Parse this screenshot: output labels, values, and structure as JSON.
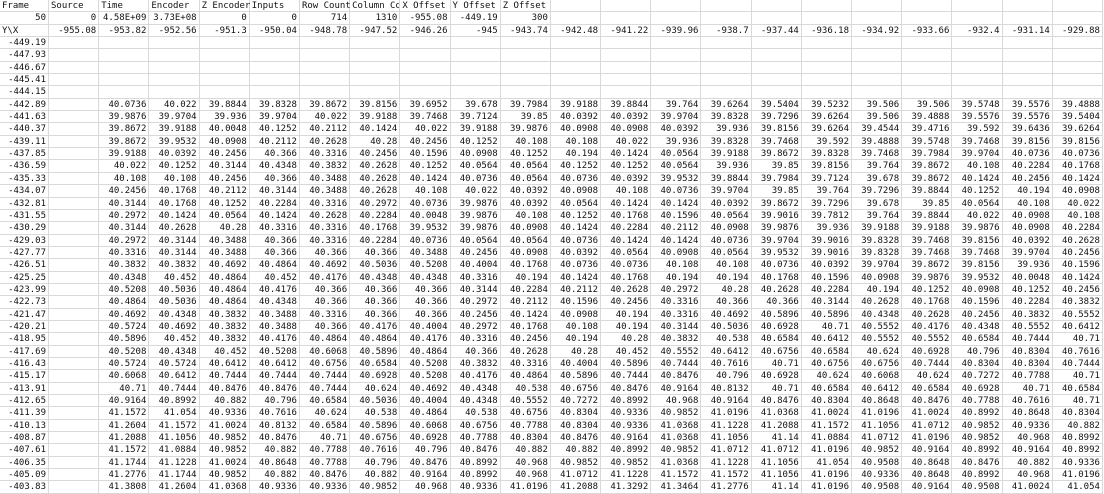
{
  "header": {
    "labels": [
      "Frame",
      "Source",
      "Time",
      "Encoder",
      "Z Encoder",
      "Inputs",
      "Row Count",
      "Column Count",
      "X Offset",
      "Y Offset",
      "Z Offset"
    ],
    "values": [
      "50",
      "0",
      "4.58E+09",
      "3.73E+08",
      "0",
      "0",
      "714",
      "1310",
      "-955.08",
      "-449.19",
      "300"
    ]
  },
  "grid": {
    "corner": "Y\\X",
    "x": [
      "-955.08",
      "-953.82",
      "-952.56",
      "-951.3",
      "-950.04",
      "-948.78",
      "-947.52",
      "-946.26",
      "-945",
      "-943.74",
      "-942.48",
      "-941.22",
      "-939.96",
      "-938.7",
      "-937.44",
      "-936.18",
      "-934.92",
      "-933.66",
      "-932.4",
      "-931.14",
      "-929.88"
    ],
    "rows": [
      {
        "y": "-449.19",
        "values": []
      },
      {
        "y": "-447.93",
        "values": []
      },
      {
        "y": "-446.67",
        "values": []
      },
      {
        "y": "-445.41",
        "values": []
      },
      {
        "y": "-444.15",
        "values": []
      },
      {
        "y": "-442.89",
        "values": [
          40.0736,
          40.022,
          39.8844,
          39.8328,
          39.8672,
          39.8156,
          39.6952,
          39.678,
          39.7984,
          39.9188,
          39.8844,
          39.764,
          39.6264,
          39.5404,
          39.5232,
          39.506,
          39.506,
          39.5748,
          39.5576,
          39.4888
        ]
      },
      {
        "y": "-441.63",
        "values": [
          39.9876,
          39.9704,
          39.936,
          39.9704,
          40.022,
          39.9188,
          39.7468,
          39.7124,
          39.85,
          40.0392,
          40.0392,
          39.9704,
          39.8328,
          39.7296,
          39.6264,
          39.506,
          39.4888,
          39.5576,
          39.5576,
          39.5404
        ]
      },
      {
        "y": "-440.37",
        "values": [
          39.8672,
          39.9188,
          40.0048,
          40.1252,
          40.2112,
          40.1424,
          40.022,
          39.9188,
          39.9876,
          40.0908,
          40.0908,
          40.0392,
          39.936,
          39.8156,
          39.6264,
          39.4544,
          39.4716,
          39.592,
          39.6436,
          39.6264
        ]
      },
      {
        "y": "-439.11",
        "values": [
          39.8672,
          39.9532,
          40.0908,
          40.2112,
          40.2628,
          40.28,
          40.2456,
          40.1252,
          40.108,
          40.108,
          40.022,
          39.936,
          39.8328,
          39.7468,
          39.592,
          39.4888,
          39.5748,
          39.7468,
          39.8156,
          39.8156
        ]
      },
      {
        "y": "-437.85",
        "values": [
          39.9188,
          40.0392,
          40.2456,
          40.366,
          40.3316,
          40.2456,
          40.1596,
          40.0908,
          40.1252,
          40.194,
          40.1424,
          40.0564,
          39.9188,
          39.8672,
          39.8328,
          39.7468,
          39.7984,
          39.9704,
          40.0736,
          40.0736
        ]
      },
      {
        "y": "-436.59",
        "values": [
          40.022,
          40.1252,
          40.3144,
          40.4348,
          40.3832,
          40.2628,
          40.1252,
          40.0564,
          40.0564,
          40.1252,
          40.1252,
          40.0564,
          39.936,
          39.85,
          39.8156,
          39.764,
          39.8672,
          40.108,
          40.2284,
          40.1768
        ]
      },
      {
        "y": "-435.33",
        "values": [
          40.108,
          40.108,
          40.2456,
          40.366,
          40.3488,
          40.2628,
          40.1424,
          40.0736,
          40.0564,
          40.0736,
          40.0392,
          39.9532,
          39.8844,
          39.7984,
          39.7124,
          39.678,
          39.8672,
          40.1424,
          40.2456,
          40.1424
        ]
      },
      {
        "y": "-434.07",
        "values": [
          40.2456,
          40.1768,
          40.2112,
          40.3144,
          40.3488,
          40.2628,
          40.108,
          40.022,
          40.0392,
          40.0908,
          40.108,
          40.0736,
          39.9704,
          39.85,
          39.764,
          39.7296,
          39.8844,
          40.1252,
          40.194,
          40.0908
        ]
      },
      {
        "y": "-432.81",
        "values": [
          40.3144,
          40.1768,
          40.1252,
          40.2284,
          40.3316,
          40.2972,
          40.0736,
          39.9876,
          40.0392,
          40.0564,
          40.1424,
          40.1424,
          40.0392,
          39.8672,
          39.7296,
          39.678,
          39.85,
          40.0564,
          40.108,
          40.022
        ]
      },
      {
        "y": "-431.55",
        "values": [
          40.2972,
          40.1424,
          40.0564,
          40.1424,
          40.2628,
          40.2284,
          40.0048,
          39.9876,
          40.108,
          40.1252,
          40.1768,
          40.1596,
          40.0564,
          39.9016,
          39.7812,
          39.764,
          39.8844,
          40.022,
          40.0908,
          40.108
        ]
      },
      {
        "y": "-430.29",
        "values": [
          40.3144,
          40.2628,
          40.28,
          40.3316,
          40.3316,
          40.1768,
          39.9532,
          39.9876,
          40.0908,
          40.1424,
          40.2284,
          40.2112,
          40.0908,
          39.9876,
          39.936,
          39.9188,
          39.9188,
          39.9876,
          40.0908,
          40.2284
        ]
      },
      {
        "y": "-429.03",
        "values": [
          40.2972,
          40.3144,
          40.3488,
          40.366,
          40.3316,
          40.2284,
          40.0736,
          40.0564,
          40.0564,
          40.0736,
          40.1424,
          40.1424,
          40.0736,
          39.9704,
          39.9016,
          39.8328,
          39.7468,
          39.8156,
          40.0392,
          40.2628
        ]
      },
      {
        "y": "-427.77",
        "values": [
          40.3316,
          40.3144,
          40.3488,
          40.366,
          40.366,
          40.366,
          40.3488,
          40.2456,
          40.0908,
          40.0392,
          40.0564,
          40.0908,
          40.0564,
          39.9532,
          39.9016,
          39.8328,
          39.7468,
          39.7468,
          39.9704,
          40.2456
        ]
      },
      {
        "y": "-426.51",
        "values": [
          40.3832,
          40.3832,
          40.4692,
          40.4864,
          40.4692,
          40.5036,
          40.5208,
          40.4004,
          40.1768,
          40.0736,
          40.0736,
          40.108,
          40.108,
          40.0736,
          40.0392,
          39.9704,
          39.8672,
          39.8156,
          39.936,
          40.1596
        ]
      },
      {
        "y": "-425.25",
        "values": [
          40.4348,
          40.452,
          40.4864,
          40.452,
          40.4176,
          40.4348,
          40.4348,
          40.3316,
          40.194,
          40.1424,
          40.1768,
          40.194,
          40.194,
          40.1768,
          40.1596,
          40.0908,
          39.9876,
          39.9532,
          40.0048,
          40.1424
        ]
      },
      {
        "y": "-423.99",
        "values": [
          40.5208,
          40.5036,
          40.4864,
          40.4176,
          40.366,
          40.366,
          40.366,
          40.3144,
          40.2284,
          40.2112,
          40.2628,
          40.2972,
          40.28,
          40.2628,
          40.2284,
          40.194,
          40.1252,
          40.0908,
          40.1252,
          40.2456
        ]
      },
      {
        "y": "-422.73",
        "values": [
          40.4864,
          40.5036,
          40.4864,
          40.4348,
          40.366,
          40.366,
          40.366,
          40.2972,
          40.2112,
          40.1596,
          40.2456,
          40.3316,
          40.366,
          40.366,
          40.3144,
          40.2628,
          40.1768,
          40.1596,
          40.2284,
          40.3832
        ]
      },
      {
        "y": "-421.47",
        "values": [
          40.4692,
          40.4348,
          40.3832,
          40.3488,
          40.3316,
          40.366,
          40.366,
          40.2456,
          40.1424,
          40.0908,
          40.194,
          40.3316,
          40.4692,
          40.5896,
          40.5896,
          40.4348,
          40.2628,
          40.2456,
          40.3832,
          40.5552
        ]
      },
      {
        "y": "-420.21",
        "values": [
          40.5724,
          40.4692,
          40.3832,
          40.3488,
          40.366,
          40.4176,
          40.4004,
          40.2972,
          40.1768,
          40.108,
          40.194,
          40.3144,
          40.5036,
          40.6928,
          40.71,
          40.5552,
          40.4176,
          40.4348,
          40.5552,
          40.6412
        ]
      },
      {
        "y": "-418.95",
        "values": [
          40.5896,
          40.452,
          40.3832,
          40.4176,
          40.4864,
          40.4864,
          40.4176,
          40.3316,
          40.2456,
          40.194,
          40.28,
          40.3832,
          40.538,
          40.6584,
          40.6412,
          40.5552,
          40.5552,
          40.6584,
          40.7444,
          40.71
        ]
      },
      {
        "y": "-417.69",
        "values": [
          40.5208,
          40.4348,
          40.452,
          40.5208,
          40.6068,
          40.5896,
          40.4864,
          40.366,
          40.2628,
          40.28,
          40.452,
          40.5552,
          40.6412,
          40.6756,
          40.6584,
          40.624,
          40.6928,
          40.796,
          40.8304,
          40.7616
        ]
      },
      {
        "y": "-416.43",
        "values": [
          40.5724,
          40.5724,
          40.6412,
          40.6412,
          40.6756,
          40.6584,
          40.5208,
          40.3832,
          40.3316,
          40.4004,
          40.5896,
          40.7444,
          40.7616,
          40.71,
          40.6756,
          40.6756,
          40.7444,
          40.8304,
          40.8304,
          40.7444
        ]
      },
      {
        "y": "-415.17",
        "values": [
          40.6068,
          40.6412,
          40.7444,
          40.7444,
          40.7444,
          40.6928,
          40.5208,
          40.4176,
          40.4864,
          40.5896,
          40.7444,
          40.8476,
          40.796,
          40.6928,
          40.624,
          40.6068,
          40.624,
          40.7272,
          40.7788,
          40.71
        ]
      },
      {
        "y": "-413.91",
        "values": [
          40.71,
          40.7444,
          40.8476,
          40.8476,
          40.7444,
          40.624,
          40.4692,
          40.4348,
          40.538,
          40.6756,
          40.8476,
          40.9164,
          40.8132,
          40.71,
          40.6584,
          40.6412,
          40.6584,
          40.6928,
          40.71,
          40.6584
        ]
      },
      {
        "y": "-412.65",
        "values": [
          40.9164,
          40.8992,
          40.882,
          40.796,
          40.6584,
          40.5036,
          40.4004,
          40.4348,
          40.5552,
          40.7272,
          40.8992,
          40.968,
          40.9164,
          40.8476,
          40.8304,
          40.8648,
          40.8476,
          40.7788,
          40.7616,
          40.71
        ]
      },
      {
        "y": "-411.39",
        "values": [
          41.1572,
          41.054,
          40.9336,
          40.7616,
          40.624,
          40.538,
          40.4864,
          40.538,
          40.6756,
          40.8304,
          40.9336,
          40.9852,
          41.0196,
          41.0368,
          41.0024,
          41.0196,
          41.0024,
          40.8992,
          40.8648,
          40.8304
        ]
      },
      {
        "y": "-410.13",
        "values": [
          41.2604,
          41.1572,
          41.0024,
          40.8132,
          40.6584,
          40.5896,
          40.6068,
          40.6756,
          40.7788,
          40.8304,
          40.9336,
          41.0368,
          41.1228,
          41.2088,
          41.1572,
          41.1056,
          41.0712,
          40.9852,
          40.9336,
          40.882
        ]
      },
      {
        "y": "-408.87",
        "values": [
          41.2088,
          41.1056,
          40.9852,
          40.8476,
          40.71,
          40.6756,
          40.6928,
          40.7788,
          40.8304,
          40.8476,
          40.9164,
          41.0368,
          41.1056,
          41.14,
          41.0884,
          41.0712,
          41.0196,
          40.9852,
          40.968,
          40.8992
        ]
      },
      {
        "y": "-407.61",
        "values": [
          41.1572,
          41.0884,
          40.9852,
          40.882,
          40.7788,
          40.7616,
          40.796,
          40.8476,
          40.882,
          40.882,
          40.8992,
          40.9852,
          41.0712,
          41.0712,
          41.0196,
          40.9852,
          40.9164,
          40.8992,
          40.9164,
          40.8992
        ]
      },
      {
        "y": "-406.35",
        "values": [
          41.1744,
          41.1228,
          41.0024,
          40.8648,
          40.7788,
          40.796,
          40.8476,
          40.8992,
          40.968,
          40.9852,
          40.9852,
          41.0368,
          41.1228,
          41.1056,
          41.054,
          40.9508,
          40.8648,
          40.8476,
          40.882,
          40.9336
        ]
      },
      {
        "y": "-405.09",
        "values": [
          41.2776,
          41.1744,
          40.9852,
          40.882,
          40.8476,
          40.882,
          40.9164,
          40.8992,
          40.968,
          41.0712,
          41.1228,
          41.1572,
          41.1572,
          41.1056,
          41.0196,
          40.9336,
          40.8648,
          40.8992,
          40.968,
          41.0196
        ]
      },
      {
        "y": "-403.83",
        "values": [
          41.3808,
          41.2604,
          41.0368,
          40.9336,
          40.9336,
          40.9852,
          40.968,
          40.9336,
          41.0196,
          41.2088,
          41.3292,
          41.3464,
          41.2776,
          41.14,
          41.0196,
          40.9508,
          40.9164,
          40.9508,
          41.0024,
          41.054
        ]
      }
    ]
  }
}
